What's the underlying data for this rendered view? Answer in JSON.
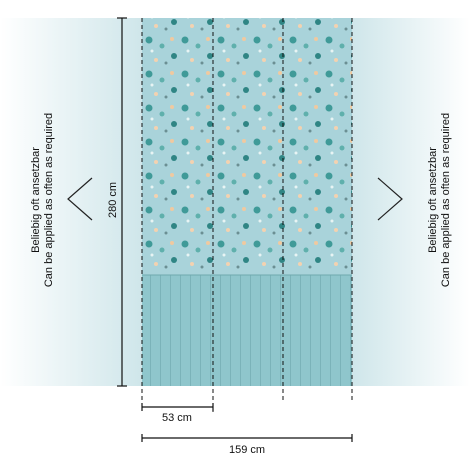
{
  "side_note": {
    "de": "Beliebig oft ansetzbar",
    "en": "Can be applied as often as required"
  },
  "height_label": "280 cm",
  "panel_width_label": "53 cm",
  "total_width_label": "159 cm"
}
